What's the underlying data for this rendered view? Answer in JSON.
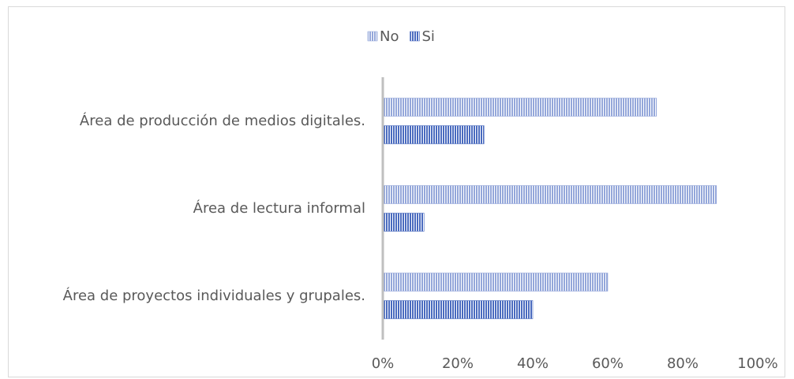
{
  "chart_data": {
    "type": "bar",
    "orientation": "horizontal",
    "categories": [
      "Área de producción de medios digitales.",
      "Área de lectura informal",
      "Área de proyectos individuales y grupales."
    ],
    "series": [
      {
        "name": "No",
        "color": "#94a7da",
        "values": [
          73,
          89,
          60
        ]
      },
      {
        "name": "Si",
        "color": "#4a6bbf",
        "values": [
          27,
          11,
          40
        ]
      }
    ],
    "xlim": [
      0,
      100
    ],
    "xticks": [
      {
        "value": 0,
        "label": "0%"
      },
      {
        "value": 20,
        "label": "20%"
      },
      {
        "value": 40,
        "label": "40%"
      },
      {
        "value": 60,
        "label": "60%"
      },
      {
        "value": 80,
        "label": "80%"
      },
      {
        "value": 100,
        "label": "100%"
      }
    ],
    "legend": "top"
  }
}
